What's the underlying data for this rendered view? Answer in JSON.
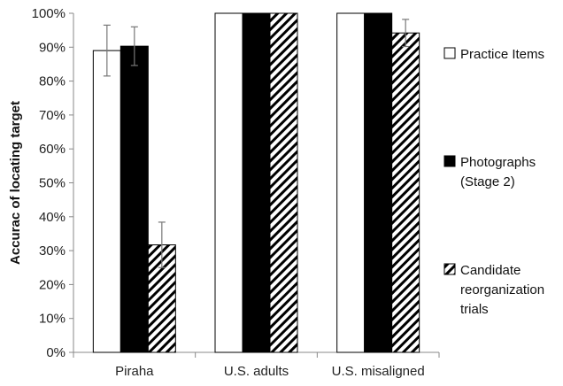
{
  "chart_data": {
    "type": "bar",
    "title": "",
    "xlabel": "",
    "ylabel": "Accurac of locating target",
    "ylim": [
      0,
      100
    ],
    "yticks": [
      0,
      10,
      20,
      30,
      40,
      50,
      60,
      70,
      80,
      90,
      100
    ],
    "ytick_labels": [
      "0%",
      "10%",
      "20%",
      "30%",
      "40%",
      "50%",
      "60%",
      "70%",
      "80%",
      "90%",
      "100%"
    ],
    "categories": [
      "Piraha",
      "U.S. adults",
      "U.S. misaligned"
    ],
    "series": [
      {
        "name": "Practice Items",
        "legend_lines": [
          "Practice Items"
        ],
        "pattern": "white",
        "values": [
          89,
          100,
          100
        ],
        "error": [
          7.5,
          0,
          0
        ]
      },
      {
        "name": "Photographs (Stage 2)",
        "legend_lines": [
          "Photographs",
          "(Stage 2)"
        ],
        "pattern": "black",
        "values": [
          90.3,
          100,
          100
        ],
        "error": [
          5.7,
          0,
          0
        ]
      },
      {
        "name": "Candidate reorganization trials",
        "legend_lines": [
          "Candidate",
          "reorganization",
          "trials"
        ],
        "pattern": "hatch",
        "values": [
          31.7,
          100,
          94.2
        ],
        "error": [
          6.7,
          0,
          4
        ]
      }
    ],
    "legend_position": "right",
    "grid": false
  }
}
